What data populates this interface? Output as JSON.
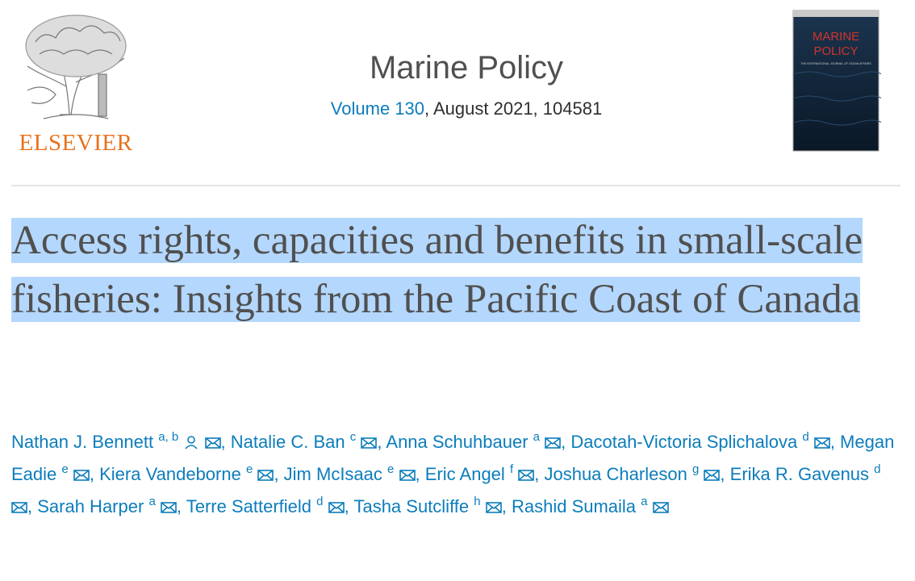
{
  "header": {
    "publisher": "ELSEVIER",
    "journal": "Marine Policy",
    "volume": "Volume 130",
    "issue_info": ", August 2021, 104581",
    "cover": {
      "title_line1": "MARINE",
      "title_line2": "POLICY",
      "subtitle": "THE INTERNATIONAL JOURNAL OF OCEAN AFFAIRS"
    }
  },
  "article": {
    "title": "Access rights, capacities and benefits in small-scale fisheries: Insights from the Pacific Coast of Canada",
    "author_separator": ", ",
    "authors": [
      {
        "name": "Nathan J. Bennett",
        "affiliations": "a, b",
        "corresponding": true
      },
      {
        "name": "Natalie C. Ban",
        "affiliations": "c"
      },
      {
        "name": "Anna Schuhbauer",
        "affiliations": "a"
      },
      {
        "name": "Dacotah-Victoria Splichalova",
        "affiliations": "d"
      },
      {
        "name": "Megan Eadie",
        "affiliations": "e"
      },
      {
        "name": "Kiera Vandeborne",
        "affiliations": "e"
      },
      {
        "name": "Jim McIsaac",
        "affiliations": "e"
      },
      {
        "name": "Eric Angel",
        "affiliations": "f"
      },
      {
        "name": "Joshua Charleson",
        "affiliations": "g"
      },
      {
        "name": "Erika R. Gavenus",
        "affiliations": "d"
      },
      {
        "name": "Sarah Harper",
        "affiliations": "a"
      },
      {
        "name": "Terre Satterfield",
        "affiliations": "d"
      },
      {
        "name": "Tasha Sutcliffe",
        "affiliations": "h"
      },
      {
        "name": "Rashid Sumaila",
        "affiliations": "a"
      }
    ]
  }
}
